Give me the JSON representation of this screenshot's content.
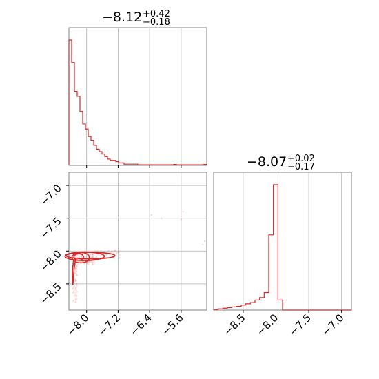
{
  "chart_data": [
    {
      "type": "histogram",
      "panel": "top-left",
      "title": {
        "value": "−8.12",
        "upper": "+0.42",
        "lower": "−0.18"
      },
      "xlim": [
        -8.45,
        -4.95
      ],
      "bin_edges": [
        -8.45,
        -8.38,
        -8.31,
        -8.24,
        -8.17,
        -8.1,
        -8.03,
        -7.96,
        -7.89,
        -7.82,
        -7.75,
        -7.68,
        -7.61,
        -7.54,
        -7.47,
        -7.4,
        -7.33,
        -7.26,
        -7.19,
        -7.12,
        -7.05,
        -6.98,
        -6.91,
        -6.84,
        -6.77,
        -6.7,
        -6.63,
        -6.56,
        -6.49,
        -6.42,
        -6.35,
        -6.28,
        -6.21,
        -6.14,
        -6.07,
        -6.0,
        -5.93,
        -5.86,
        -5.79,
        -5.72,
        -5.65,
        -5.58,
        -5.51,
        -5.44,
        -5.37,
        -5.3,
        -5.23,
        -5.16,
        -5.09,
        -5.02,
        -4.95
      ],
      "counts": [
        1.0,
        0.82,
        0.59,
        0.55,
        0.43,
        0.33,
        0.29,
        0.23,
        0.2,
        0.16,
        0.13,
        0.11,
        0.09,
        0.07,
        0.05,
        0.04,
        0.04,
        0.03,
        0.02,
        0.02,
        0.01,
        0.01,
        0.01,
        0.01,
        0.01,
        0.005,
        0.005,
        0.005,
        0.005,
        0.005,
        0.005,
        0.005,
        0.005,
        0.005,
        0.005,
        0.005,
        0.005,
        0.005,
        0.008,
        0.005,
        0.005,
        0.005,
        0.005,
        0.005,
        0.005,
        0.005,
        0.005,
        0.005,
        0.005,
        0.008
      ],
      "xgrid": [
        -8.0,
        -7.2,
        -6.4,
        -5.6
      ]
    },
    {
      "type": "scatter",
      "panel": "bottom-left",
      "xlim": [
        -8.45,
        -4.95
      ],
      "ylim": [
        -8.9,
        -6.8
      ],
      "xticks": [
        "−8.0",
        "−7.2",
        "−6.4",
        "−5.6"
      ],
      "yticks": [
        "−7.0",
        "−7.5",
        "−8.0",
        "−8.5"
      ],
      "xtick_values": [
        -8.0,
        -7.2,
        -6.4,
        -5.6
      ],
      "ytick_values": [
        -7.0,
        -7.5,
        -8.0,
        -8.5
      ],
      "contour_x_range": [
        -8.35,
        -7.3
      ],
      "contour_y_range": [
        -8.5,
        -8.0
      ]
    },
    {
      "type": "histogram",
      "panel": "bottom-right",
      "title": {
        "value": "−8.07",
        "upper": "+0.02",
        "lower": "−0.17"
      },
      "xlim": [
        -8.95,
        -6.85
      ],
      "xticks": [
        "−8.5",
        "−8.0",
        "−7.5",
        "−7.0"
      ],
      "xtick_values": [
        -8.5,
        -8.0,
        -7.5,
        -7.0
      ],
      "bin_edges": [
        -8.95,
        -8.88,
        -8.81,
        -8.74,
        -8.67,
        -8.6,
        -8.53,
        -8.46,
        -8.39,
        -8.32,
        -8.25,
        -8.18,
        -8.11,
        -8.04,
        -7.97,
        -7.9,
        -7.83,
        -7.76,
        -7.69,
        -7.62,
        -7.55,
        -7.48,
        -7.41,
        -7.34,
        -7.27,
        -7.2,
        -7.13,
        -7.06,
        -6.99,
        -6.92,
        -6.85
      ],
      "counts": [
        0.005,
        0.01,
        0.015,
        0.02,
        0.025,
        0.03,
        0.04,
        0.05,
        0.06,
        0.08,
        0.1,
        0.14,
        0.6,
        1.0,
        0.08,
        0,
        0,
        0,
        0,
        0,
        0,
        0,
        0,
        0,
        0,
        0,
        0,
        0,
        0,
        0
      ]
    }
  ],
  "colors": {
    "line": "#d62728",
    "grid": "#b0b0b0",
    "frame": "#808080"
  }
}
